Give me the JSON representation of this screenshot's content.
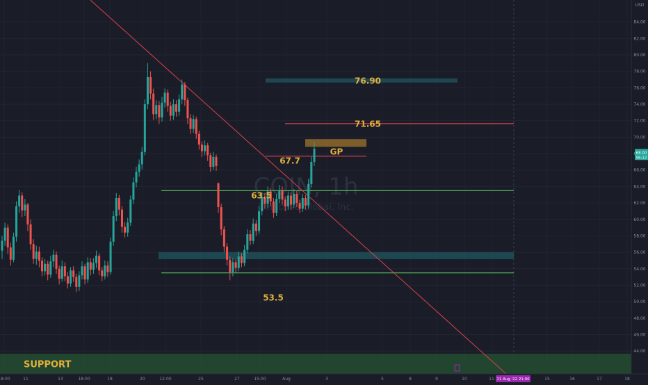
{
  "chart_data": {
    "type": "candlestick",
    "currency": "USD",
    "watermark": {
      "symbol": "COIN, 1h",
      "name": "Coinbase Global, Inc."
    },
    "y_axis": {
      "range": [
        43,
        86
      ],
      "ticks": [
        "84.00",
        "82.00",
        "80.00",
        "78.00",
        "76.00",
        "74.00",
        "72.00",
        "70.00",
        "68.00",
        "66.00",
        "64.00",
        "62.00",
        "60.00",
        "58.00",
        "56.00",
        "54.00",
        "52.00",
        "50.00",
        "48.00",
        "46.00",
        "44.00"
      ],
      "last_price_tag": {
        "top": "68.00",
        "bottom": "56:12",
        "value": 67.9
      }
    },
    "x_axis": {
      "ticks": [
        "18:00",
        "11",
        "13",
        "18:00",
        "18",
        "20",
        "12:00",
        "25",
        "27",
        "15:00",
        "Aug",
        "3",
        "5",
        "8",
        "9",
        "10",
        "11",
        "15",
        "16",
        "17",
        "18"
      ],
      "highlight": "11 Aug '22  21:00"
    },
    "levels": [
      {
        "label": "76.90",
        "value": 76.9,
        "style": "zone",
        "color": "#1e4e57",
        "text_color": "#e2b03c"
      },
      {
        "label": "71.65",
        "value": 71.65,
        "style": "line",
        "color": "#d9414f",
        "text_color": "#e2b03c"
      },
      {
        "label": "GP",
        "value": 69.3,
        "style": "zone",
        "color": "#8f6a2a",
        "text_color": "#e2b03c"
      },
      {
        "label": "67.7",
        "value": 67.7,
        "style": "line",
        "color": "#d9414f",
        "text_color": "#e2b03c"
      },
      {
        "label": "63.5",
        "value": 63.5,
        "style": "line",
        "color": "#58c95a",
        "text_color": "#e2b03c"
      },
      {
        "label": "",
        "value": 55.6,
        "style": "zone",
        "color": "#1e4e57",
        "text_color": "#e2b03c"
      },
      {
        "label": "53.5",
        "value": 53.5,
        "style": "line",
        "color": "#58c95a",
        "text_color": "#e2b03c"
      },
      {
        "label": "SUPPORT",
        "value": 44.5,
        "style": "zone",
        "color": "#244a30",
        "text_color": "#e2b03c"
      }
    ],
    "trendline": {
      "from": [
        0,
        87
      ],
      "to": [
        1,
        43
      ],
      "color": "#d9414f"
    },
    "candles": [
      {
        "o": 56.2,
        "c": 57.4,
        "h": 58.0,
        "l": 55.2
      },
      {
        "o": 57.4,
        "c": 59.0,
        "h": 59.6,
        "l": 56.8
      },
      {
        "o": 59.0,
        "c": 56.6,
        "h": 59.4,
        "l": 55.8
      },
      {
        "o": 56.6,
        "c": 55.1,
        "h": 57.2,
        "l": 54.4
      },
      {
        "o": 55.1,
        "c": 57.9,
        "h": 58.4,
        "l": 54.8
      },
      {
        "o": 57.9,
        "c": 61.6,
        "h": 62.2,
        "l": 57.3
      },
      {
        "o": 61.6,
        "c": 62.9,
        "h": 63.6,
        "l": 60.8
      },
      {
        "o": 62.9,
        "c": 61.1,
        "h": 63.3,
        "l": 60.3
      },
      {
        "o": 61.1,
        "c": 61.8,
        "h": 62.5,
        "l": 60.4
      },
      {
        "o": 61.8,
        "c": 59.4,
        "h": 62.0,
        "l": 58.6
      },
      {
        "o": 59.4,
        "c": 57.0,
        "h": 60.0,
        "l": 56.3
      },
      {
        "o": 57.0,
        "c": 55.2,
        "h": 57.6,
        "l": 54.6
      },
      {
        "o": 55.2,
        "c": 56.1,
        "h": 56.8,
        "l": 54.5
      },
      {
        "o": 56.1,
        "c": 55.0,
        "h": 56.7,
        "l": 54.2
      },
      {
        "o": 55.0,
        "c": 53.7,
        "h": 55.4,
        "l": 53.1
      },
      {
        "o": 53.7,
        "c": 54.6,
        "h": 55.2,
        "l": 53.2
      },
      {
        "o": 54.6,
        "c": 53.3,
        "h": 55.0,
        "l": 52.6
      },
      {
        "o": 53.3,
        "c": 54.9,
        "h": 55.6,
        "l": 52.9
      },
      {
        "o": 54.9,
        "c": 55.7,
        "h": 56.3,
        "l": 54.2
      },
      {
        "o": 55.7,
        "c": 54.0,
        "h": 56.1,
        "l": 53.4
      },
      {
        "o": 54.0,
        "c": 52.8,
        "h": 54.4,
        "l": 52.1
      },
      {
        "o": 52.8,
        "c": 54.3,
        "h": 55.0,
        "l": 52.4
      },
      {
        "o": 54.3,
        "c": 53.1,
        "h": 54.8,
        "l": 52.5
      },
      {
        "o": 53.1,
        "c": 52.2,
        "h": 53.6,
        "l": 51.6
      },
      {
        "o": 52.2,
        "c": 53.8,
        "h": 54.2,
        "l": 51.8
      },
      {
        "o": 53.8,
        "c": 53.0,
        "h": 54.3,
        "l": 52.4
      },
      {
        "o": 53.0,
        "c": 51.8,
        "h": 53.4,
        "l": 51.2
      },
      {
        "o": 51.8,
        "c": 53.2,
        "h": 53.7,
        "l": 51.3
      },
      {
        "o": 53.2,
        "c": 54.3,
        "h": 54.9,
        "l": 52.7
      },
      {
        "o": 54.3,
        "c": 52.7,
        "h": 54.6,
        "l": 52.1
      },
      {
        "o": 52.7,
        "c": 54.8,
        "h": 55.4,
        "l": 52.3
      },
      {
        "o": 54.8,
        "c": 53.9,
        "h": 55.3,
        "l": 53.2
      },
      {
        "o": 53.9,
        "c": 54.7,
        "h": 55.3,
        "l": 53.4
      },
      {
        "o": 54.7,
        "c": 55.6,
        "h": 56.2,
        "l": 54.1
      },
      {
        "o": 55.6,
        "c": 53.8,
        "h": 55.9,
        "l": 53.2
      },
      {
        "o": 53.8,
        "c": 53.1,
        "h": 54.2,
        "l": 52.5
      },
      {
        "o": 53.1,
        "c": 54.4,
        "h": 55.0,
        "l": 52.7
      },
      {
        "o": 54.4,
        "c": 53.6,
        "h": 54.9,
        "l": 53.0
      },
      {
        "o": 53.6,
        "c": 57.3,
        "h": 57.8,
        "l": 53.3
      },
      {
        "o": 57.3,
        "c": 60.4,
        "h": 61.0,
        "l": 56.8
      },
      {
        "o": 60.4,
        "c": 62.6,
        "h": 63.2,
        "l": 59.8
      },
      {
        "o": 62.6,
        "c": 61.2,
        "h": 63.0,
        "l": 60.5
      },
      {
        "o": 61.2,
        "c": 59.1,
        "h": 61.6,
        "l": 58.4
      },
      {
        "o": 59.1,
        "c": 58.4,
        "h": 59.7,
        "l": 57.8
      },
      {
        "o": 58.4,
        "c": 59.6,
        "h": 60.2,
        "l": 57.9
      },
      {
        "o": 59.6,
        "c": 62.4,
        "h": 62.9,
        "l": 59.2
      },
      {
        "o": 62.4,
        "c": 64.5,
        "h": 65.1,
        "l": 61.9
      },
      {
        "o": 64.5,
        "c": 65.8,
        "h": 66.4,
        "l": 63.9
      },
      {
        "o": 65.8,
        "c": 66.7,
        "h": 67.3,
        "l": 65.2
      },
      {
        "o": 66.7,
        "c": 68.2,
        "h": 68.8,
        "l": 66.1
      },
      {
        "o": 68.2,
        "c": 74.0,
        "h": 74.6,
        "l": 67.8
      },
      {
        "o": 74.0,
        "c": 77.3,
        "h": 79.0,
        "l": 73.4
      },
      {
        "o": 77.3,
        "c": 75.3,
        "h": 78.0,
        "l": 74.6
      },
      {
        "o": 75.3,
        "c": 72.8,
        "h": 75.9,
        "l": 72.1
      },
      {
        "o": 72.8,
        "c": 73.9,
        "h": 74.5,
        "l": 72.2
      },
      {
        "o": 73.9,
        "c": 72.4,
        "h": 74.4,
        "l": 71.6
      },
      {
        "o": 72.4,
        "c": 74.2,
        "h": 74.9,
        "l": 71.9
      },
      {
        "o": 74.2,
        "c": 75.4,
        "h": 75.9,
        "l": 73.6
      },
      {
        "o": 75.4,
        "c": 73.8,
        "h": 75.8,
        "l": 73.1
      },
      {
        "o": 73.8,
        "c": 72.6,
        "h": 74.3,
        "l": 72.0
      },
      {
        "o": 72.6,
        "c": 74.0,
        "h": 74.6,
        "l": 72.1
      },
      {
        "o": 74.0,
        "c": 73.1,
        "h": 74.5,
        "l": 72.5
      },
      {
        "o": 73.1,
        "c": 74.6,
        "h": 75.2,
        "l": 72.6
      },
      {
        "o": 74.6,
        "c": 76.4,
        "h": 77.0,
        "l": 74.0
      },
      {
        "o": 76.4,
        "c": 74.5,
        "h": 76.7,
        "l": 73.8
      },
      {
        "o": 74.5,
        "c": 72.3,
        "h": 74.8,
        "l": 71.6
      },
      {
        "o": 72.3,
        "c": 71.0,
        "h": 72.8,
        "l": 70.4
      },
      {
        "o": 71.0,
        "c": 72.2,
        "h": 72.7,
        "l": 70.5
      },
      {
        "o": 72.2,
        "c": 70.4,
        "h": 72.5,
        "l": 69.8
      },
      {
        "o": 70.4,
        "c": 69.1,
        "h": 70.8,
        "l": 68.5
      },
      {
        "o": 69.1,
        "c": 68.3,
        "h": 69.5,
        "l": 67.6
      },
      {
        "o": 68.3,
        "c": 69.0,
        "h": 69.6,
        "l": 67.8
      },
      {
        "o": 69.0,
        "c": 67.8,
        "h": 69.3,
        "l": 67.1
      },
      {
        "o": 67.8,
        "c": 66.4,
        "h": 68.1,
        "l": 65.8
      },
      {
        "o": 66.4,
        "c": 67.6,
        "h": 68.2,
        "l": 66.0
      },
      {
        "o": 67.6,
        "c": 66.5,
        "h": 67.9,
        "l": 65.9
      },
      {
        "o": 64.4,
        "c": 61.5,
        "h": 64.5,
        "l": 60.8
      },
      {
        "o": 61.5,
        "c": 58.8,
        "h": 61.9,
        "l": 58.1
      },
      {
        "o": 58.8,
        "c": 56.7,
        "h": 59.2,
        "l": 56.0
      },
      {
        "o": 56.7,
        "c": 55.1,
        "h": 57.1,
        "l": 54.4
      },
      {
        "o": 55.1,
        "c": 53.6,
        "h": 55.5,
        "l": 52.6
      },
      {
        "o": 53.6,
        "c": 54.8,
        "h": 55.3,
        "l": 53.1
      },
      {
        "o": 54.8,
        "c": 54.1,
        "h": 55.2,
        "l": 53.5
      },
      {
        "o": 54.1,
        "c": 55.5,
        "h": 56.1,
        "l": 53.7
      },
      {
        "o": 55.5,
        "c": 54.7,
        "h": 55.9,
        "l": 54.2
      },
      {
        "o": 54.7,
        "c": 56.3,
        "h": 56.9,
        "l": 54.3
      },
      {
        "o": 56.3,
        "c": 58.2,
        "h": 58.8,
        "l": 55.9
      },
      {
        "o": 58.2,
        "c": 57.4,
        "h": 58.7,
        "l": 56.9
      },
      {
        "o": 57.4,
        "c": 59.5,
        "h": 60.1,
        "l": 57.0
      },
      {
        "o": 59.5,
        "c": 58.6,
        "h": 59.9,
        "l": 58.0
      },
      {
        "o": 58.6,
        "c": 61.0,
        "h": 61.6,
        "l": 58.2
      },
      {
        "o": 61.0,
        "c": 62.7,
        "h": 63.3,
        "l": 60.5
      },
      {
        "o": 62.7,
        "c": 61.9,
        "h": 63.2,
        "l": 61.3
      },
      {
        "o": 61.9,
        "c": 63.4,
        "h": 64.0,
        "l": 61.4
      },
      {
        "o": 63.4,
        "c": 62.2,
        "h": 63.8,
        "l": 61.6
      },
      {
        "o": 62.2,
        "c": 60.8,
        "h": 62.6,
        "l": 60.2
      },
      {
        "o": 60.8,
        "c": 62.5,
        "h": 63.1,
        "l": 60.4
      },
      {
        "o": 62.5,
        "c": 63.6,
        "h": 64.2,
        "l": 62.0
      },
      {
        "o": 63.6,
        "c": 62.4,
        "h": 64.0,
        "l": 61.8
      },
      {
        "o": 62.4,
        "c": 61.6,
        "h": 62.8,
        "l": 61.0
      },
      {
        "o": 61.6,
        "c": 62.9,
        "h": 63.4,
        "l": 61.2
      },
      {
        "o": 62.9,
        "c": 61.8,
        "h": 63.3,
        "l": 61.2
      },
      {
        "o": 61.8,
        "c": 63.1,
        "h": 63.7,
        "l": 61.4
      },
      {
        "o": 63.1,
        "c": 62.0,
        "h": 63.5,
        "l": 61.5
      },
      {
        "o": 62.0,
        "c": 61.3,
        "h": 62.4,
        "l": 60.8
      },
      {
        "o": 61.3,
        "c": 62.6,
        "h": 63.1,
        "l": 60.9
      },
      {
        "o": 62.6,
        "c": 61.7,
        "h": 63.0,
        "l": 61.2
      },
      {
        "o": 61.7,
        "c": 64.3,
        "h": 64.9,
        "l": 61.3
      },
      {
        "o": 64.3,
        "c": 67.0,
        "h": 67.6,
        "l": 63.9
      },
      {
        "o": 67.0,
        "c": 68.6,
        "h": 69.4,
        "l": 66.5
      }
    ]
  }
}
